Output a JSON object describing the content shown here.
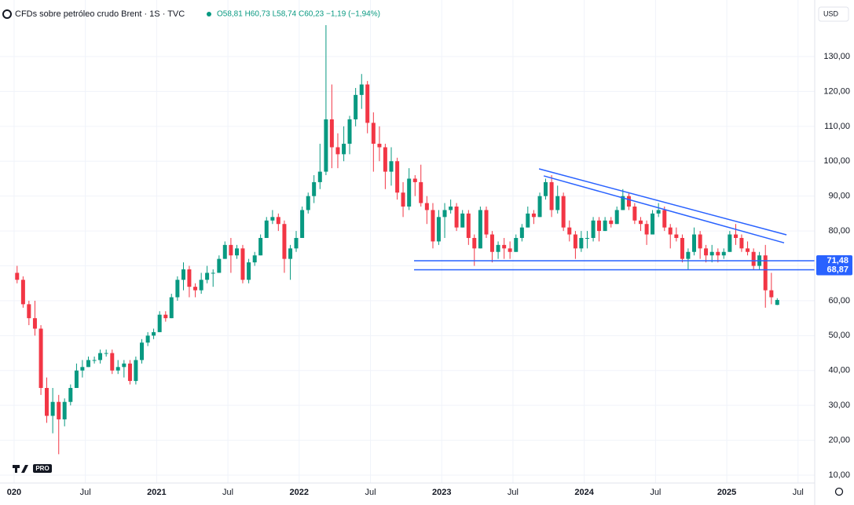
{
  "chart_data": {
    "type": "candlestick",
    "title": "CFDs sobre petróleo crudo Brent · 1S · TVC",
    "ohlc_readout": "O58,81 H60,73 L58,74 C60,23 −1,19 (−1,94%)",
    "currency": "USD",
    "logo_badge": "PRO",
    "up_color": "#089981",
    "down_color": "#f23645",
    "grid": true,
    "xlim": [
      2019.901,
      2025.617
    ],
    "ylim": [
      7.75,
      139.46
    ],
    "xticks": [
      {
        "value": 2020.0,
        "label": "020"
      },
      {
        "value": 2020.5,
        "label": "Jul"
      },
      2021,
      {
        "value": 2021.5,
        "label": "Jul"
      },
      2022,
      {
        "value": 2022.5,
        "label": "Jul"
      },
      2023,
      {
        "value": 2023.5,
        "label": "Jul"
      },
      2024,
      {
        "value": 2024.5,
        "label": "Jul"
      },
      2025,
      {
        "value": 2025.5,
        "label": "Jul"
      }
    ],
    "yticks": [
      {
        "value": 10,
        "label": "10,00"
      },
      {
        "value": 20,
        "label": "20,00"
      },
      {
        "value": 30,
        "label": "30,00"
      },
      {
        "value": 40,
        "label": "40,00"
      },
      {
        "value": 50,
        "label": "50,00"
      },
      {
        "value": 60,
        "label": "60,00"
      },
      {
        "value": 70,
        "label": "70,00"
      },
      {
        "value": 80,
        "label": "80,00"
      },
      {
        "value": 90,
        "label": "90,00"
      },
      {
        "value": 100,
        "label": "100,00"
      },
      {
        "value": 110,
        "label": "110,00"
      },
      {
        "value": 120,
        "label": "120,00"
      },
      {
        "value": 130,
        "label": "130,00"
      }
    ],
    "x": [
      2020.021,
      2020.063,
      2020.104,
      2020.146,
      2020.188,
      2020.229,
      2020.271,
      2020.313,
      2020.354,
      2020.396,
      2020.438,
      2020.479,
      2020.521,
      2020.563,
      2020.604,
      2020.646,
      2020.688,
      2020.729,
      2020.771,
      2020.813,
      2020.854,
      2020.896,
      2020.938,
      2020.979,
      2021.021,
      2021.063,
      2021.104,
      2021.146,
      2021.188,
      2021.229,
      2021.271,
      2021.313,
      2021.354,
      2021.396,
      2021.438,
      2021.479,
      2021.521,
      2021.563,
      2021.604,
      2021.646,
      2021.688,
      2021.729,
      2021.771,
      2021.813,
      2021.854,
      2021.896,
      2021.938,
      2021.979,
      2022.021,
      2022.063,
      2022.104,
      2022.146,
      2022.188,
      2022.229,
      2022.271,
      2022.313,
      2022.354,
      2022.396,
      2022.438,
      2022.479,
      2022.521,
      2022.563,
      2022.604,
      2022.646,
      2022.688,
      2022.729,
      2022.771,
      2022.813,
      2022.854,
      2022.896,
      2022.938,
      2022.979,
      2023.021,
      2023.063,
      2023.104,
      2023.146,
      2023.188,
      2023.229,
      2023.271,
      2023.313,
      2023.354,
      2023.396,
      2023.438,
      2023.479,
      2023.521,
      2023.563,
      2023.604,
      2023.646,
      2023.688,
      2023.729,
      2023.771,
      2023.813,
      2023.854,
      2023.896,
      2023.938,
      2023.979,
      2024.021,
      2024.063,
      2024.104,
      2024.146,
      2024.188,
      2024.229,
      2024.271,
      2024.313,
      2024.354,
      2024.396,
      2024.438,
      2024.479,
      2024.521,
      2024.563,
      2024.604,
      2024.646,
      2024.688,
      2024.729,
      2024.771,
      2024.813,
      2024.854,
      2024.896,
      2024.938,
      2024.979,
      2025.021,
      2025.063,
      2025.104,
      2025.146,
      2025.188,
      2025.229,
      2025.271,
      2025.313,
      2025.354
    ],
    "open": [
      68,
      66,
      59,
      55,
      52,
      35,
      27,
      31,
      26,
      31,
      35,
      40,
      41,
      43,
      43,
      45,
      45,
      40,
      41,
      42,
      37,
      43,
      48,
      50,
      51,
      56,
      55,
      61,
      66,
      69,
      64,
      63,
      66,
      68,
      68,
      72,
      76,
      73,
      75,
      66,
      71,
      73,
      78,
      83,
      84,
      82,
      72,
      75,
      78,
      86,
      90,
      94,
      97,
      112,
      104,
      102,
      105,
      112,
      119,
      122,
      111,
      105,
      104,
      97,
      100,
      91,
      87,
      95,
      94,
      88,
      86,
      77,
      84,
      86,
      87,
      81,
      85,
      78,
      75,
      86,
      79,
      74,
      76,
      75,
      74,
      78,
      81,
      85,
      84,
      90,
      94,
      86,
      90,
      81,
      79,
      75,
      78,
      78,
      83,
      80,
      83,
      82,
      86,
      90,
      87,
      83,
      82,
      79,
      85,
      86,
      81,
      79,
      78,
      72,
      74,
      79,
      75,
      73,
      74,
      73,
      74,
      79,
      78,
      75,
      74,
      70,
      73,
      63,
      58.81
    ],
    "high": [
      70,
      67,
      60,
      60,
      53,
      38,
      35,
      33,
      32,
      36,
      42,
      43,
      44,
      44,
      46,
      46,
      46,
      43,
      43,
      43,
      44,
      49,
      51,
      52,
      57,
      57,
      62,
      67,
      71,
      70,
      65,
      68,
      70,
      69,
      73,
      77,
      78,
      76,
      76,
      72,
      74,
      79,
      84,
      86,
      85,
      83,
      76,
      80,
      87,
      91,
      96,
      105,
      139,
      122,
      108,
      110,
      113,
      121,
      125,
      123,
      114,
      110,
      105,
      104,
      101,
      94,
      98,
      96,
      99,
      90,
      88,
      86,
      88,
      89,
      88,
      86,
      86,
      79,
      87,
      87,
      80,
      77,
      78,
      77,
      79,
      82,
      87,
      86,
      91,
      95,
      96,
      93,
      91,
      83,
      80,
      80,
      80,
      84,
      84,
      84,
      84,
      87,
      92,
      91,
      88,
      84,
      83,
      86,
      88,
      87,
      82,
      81,
      79,
      75,
      81,
      80,
      76,
      76,
      75,
      75,
      80,
      82,
      79,
      77,
      75,
      74,
      76,
      68,
      60.73
    ],
    "low": [
      65,
      58,
      53,
      50,
      33,
      25,
      22,
      16,
      24,
      30,
      35,
      38,
      41,
      42,
      42,
      44,
      39,
      39,
      38,
      36,
      36,
      42,
      47,
      49,
      51,
      54,
      55,
      60,
      63,
      61,
      61,
      62,
      65,
      64,
      68,
      72,
      68,
      72,
      65,
      65,
      70,
      73,
      78,
      82,
      80,
      68,
      66,
      74,
      78,
      85,
      88,
      92,
      96,
      98,
      98,
      100,
      102,
      110,
      115,
      108,
      97,
      100,
      92,
      93,
      89,
      84,
      86,
      90,
      87,
      82,
      75,
      76,
      78,
      85,
      80,
      81,
      76,
      70,
      75,
      78,
      71,
      72,
      72,
      72,
      74,
      77,
      81,
      82,
      84,
      89,
      84,
      85,
      80,
      77,
      72,
      74,
      75,
      77,
      77,
      80,
      81,
      82,
      86,
      86,
      82,
      80,
      76,
      79,
      84,
      80,
      75,
      77,
      71,
      69,
      73,
      72,
      71,
      71,
      71,
      72,
      74,
      76,
      74,
      73,
      69,
      69,
      58,
      59,
      58.74
    ],
    "close": [
      66,
      59,
      55,
      52,
      35,
      27,
      31,
      26,
      31,
      35,
      40,
      41,
      43,
      43,
      45,
      45,
      40,
      41,
      42,
      37,
      43,
      48,
      50,
      51,
      56,
      55,
      61,
      66,
      69,
      64,
      63,
      66,
      68,
      68,
      72,
      76,
      73,
      75,
      66,
      71,
      73,
      78,
      83,
      84,
      82,
      72,
      75,
      78,
      86,
      90,
      94,
      97,
      112,
      104,
      102,
      105,
      112,
      119,
      122,
      111,
      105,
      104,
      97,
      100,
      91,
      87,
      95,
      94,
      88,
      86,
      77,
      84,
      86,
      87,
      81,
      85,
      78,
      75,
      86,
      79,
      74,
      76,
      75,
      74,
      78,
      81,
      85,
      84,
      90,
      94,
      86,
      90,
      81,
      79,
      75,
      78,
      78,
      83,
      80,
      83,
      82,
      86,
      90,
      87,
      83,
      82,
      79,
      85,
      86,
      81,
      79,
      78,
      72,
      74,
      79,
      75,
      73,
      74,
      73,
      74,
      79,
      78,
      75,
      74,
      70,
      73,
      63,
      61,
      60.23
    ],
    "drawing_color": "#2962ff",
    "levels": [
      {
        "value": 71.48,
        "label": "71,48",
        "start": 2022.806
      },
      {
        "value": 68.87,
        "label": "68,87",
        "start": 2022.806
      }
    ],
    "trend_lines": [
      {
        "x": [
          2023.683,
          2025.419
        ],
        "y": [
          97.8,
          78.9
        ]
      },
      {
        "x": [
          2023.716,
          2025.402
        ],
        "y": [
          95.8,
          76.6
        ]
      }
    ]
  }
}
